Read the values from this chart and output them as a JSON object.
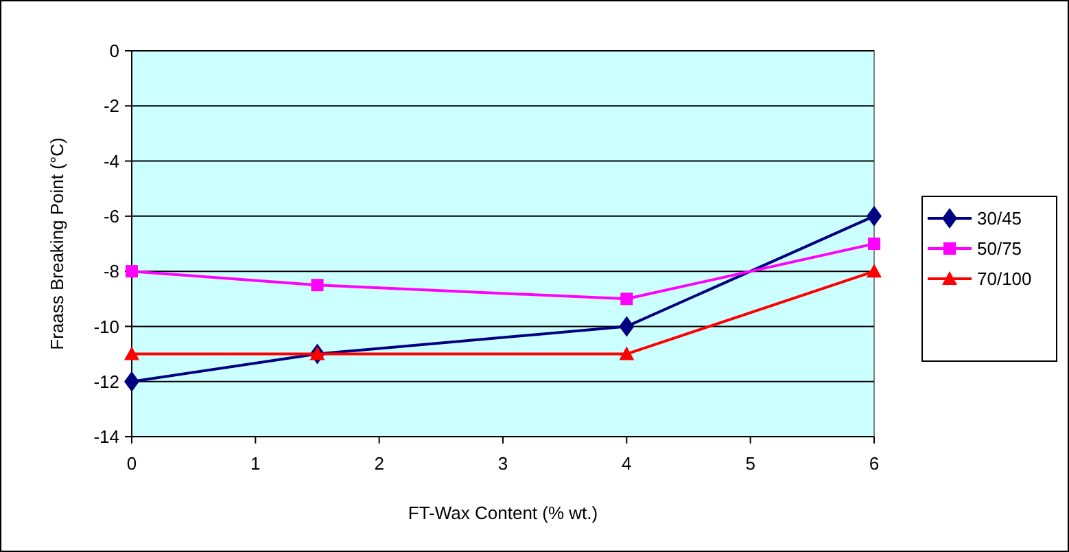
{
  "chart_data": {
    "type": "line",
    "xlabel": "FT-Wax Content (% wt.)",
    "ylabel": "Fraass Breaking Point (°C)",
    "xlim": [
      0,
      6
    ],
    "xticks": [
      0,
      1,
      2,
      3,
      4,
      5,
      6
    ],
    "ylim": [
      -14,
      0
    ],
    "yticks": [
      -14,
      -12,
      -10,
      -8,
      -6,
      -4,
      -2,
      0
    ],
    "grid": "y",
    "legend": "right",
    "line_style": "solid",
    "series": [
      {
        "name": "30/45",
        "color": "#000080",
        "marker": "diamond",
        "x": [
          0,
          1.5,
          4,
          6
        ],
        "values": [
          -12,
          -11,
          -10,
          -6
        ]
      },
      {
        "name": "50/75",
        "color": "#ff00ff",
        "marker": "square",
        "x": [
          0,
          1.5,
          4,
          6
        ],
        "values": [
          -8,
          -8.5,
          -9,
          -7
        ]
      },
      {
        "name": "70/100",
        "color": "#ff0000",
        "marker": "triangle",
        "x": [
          0,
          1.5,
          4,
          6
        ],
        "values": [
          -11,
          -11,
          -11,
          -8
        ]
      }
    ]
  }
}
